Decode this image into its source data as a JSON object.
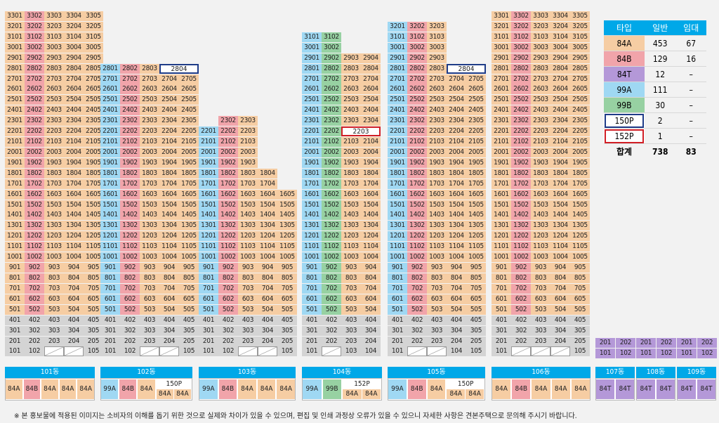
{
  "colors": {
    "84A": "#f6cda3",
    "84B": "#f1a4aa",
    "84T": "#b498d8",
    "99A": "#9fd8f3",
    "99B": "#97d1a2",
    "101": "#d4d4d4",
    "header": "#00a8e8",
    "p150_border": "#1f3c88",
    "p152_border": "#d11f26"
  },
  "legend": {
    "headers": [
      "타입",
      "일반",
      "임대"
    ],
    "rows": [
      {
        "type": "84A",
        "general": "453",
        "rental": "67"
      },
      {
        "type": "84B",
        "general": "129",
        "rental": "16"
      },
      {
        "type": "84T",
        "general": "12",
        "rental": "–"
      },
      {
        "type": "99A",
        "general": "111",
        "rental": "–"
      },
      {
        "type": "99B",
        "general": "30",
        "rental": "–"
      },
      {
        "type": "150P",
        "general": "2",
        "rental": "–"
      },
      {
        "type": "152P",
        "general": "1",
        "rental": "–"
      }
    ],
    "total": {
      "type": "합계",
      "general": "738",
      "rental": "83"
    }
  },
  "buildings": [
    {
      "name": "101동",
      "top_floor": 33,
      "units": [
        "84A",
        "84B",
        "84A",
        "84A",
        "84A"
      ],
      "missing": [
        "103",
        "104"
      ]
    },
    {
      "name": "102동",
      "top_floor": 28,
      "units": [
        "99A",
        "84B",
        "84A",
        "84A",
        "84A"
      ],
      "missing": [
        "103",
        "104"
      ],
      "penthouse": {
        "label": "2804",
        "type": "150P"
      }
    },
    {
      "name": "103동",
      "top_floor": 23,
      "units": [
        "99A",
        "84B",
        "84A",
        "84A",
        "84A"
      ],
      "missing": [
        "103",
        "104"
      ]
    },
    {
      "name": "104동",
      "top_floor": 31,
      "units": [
        "99A",
        "99B",
        "84A",
        "84A"
      ],
      "missing": [
        "102"
      ],
      "penthouse": {
        "label": "2203",
        "type": "152P"
      }
    },
    {
      "name": "105동",
      "top_floor": 32,
      "units": [
        "99A",
        "84B",
        "84A",
        "84A",
        "84A"
      ],
      "missing": [
        "102",
        "103"
      ],
      "penthouse": {
        "label": "2804",
        "type": "150P"
      }
    },
    {
      "name": "106동",
      "top_floor": 33,
      "units": [
        "84A",
        "84B",
        "84A",
        "84A",
        "84A"
      ],
      "missing": [
        "102",
        "103",
        "104"
      ]
    },
    {
      "name": "107동",
      "units": [
        "84T",
        "84T"
      ]
    },
    {
      "name": "108동",
      "units": [
        "84T",
        "84T"
      ]
    },
    {
      "name": "109동",
      "units": [
        "84T",
        "84T"
      ]
    }
  ],
  "townhouses": {
    "row2": [
      "201",
      "202",
      "201",
      "202",
      "201",
      "202"
    ],
    "row1": [
      "101",
      "102",
      "101",
      "102",
      "101",
      "102"
    ]
  },
  "penthouse_sublabels": [
    "84A",
    "84A"
  ],
  "footnote": "※ 본 홍보물에 적용된 이미지는 소비자의 이해를 돕기 위한 것으로 실제와 차이가 있을 수 있으며, 편집 및 인쇄 과정상 오류가 있을 수 있으니 자세한 사항은 견본주택으로 문의해 주시기 바랍니다."
}
